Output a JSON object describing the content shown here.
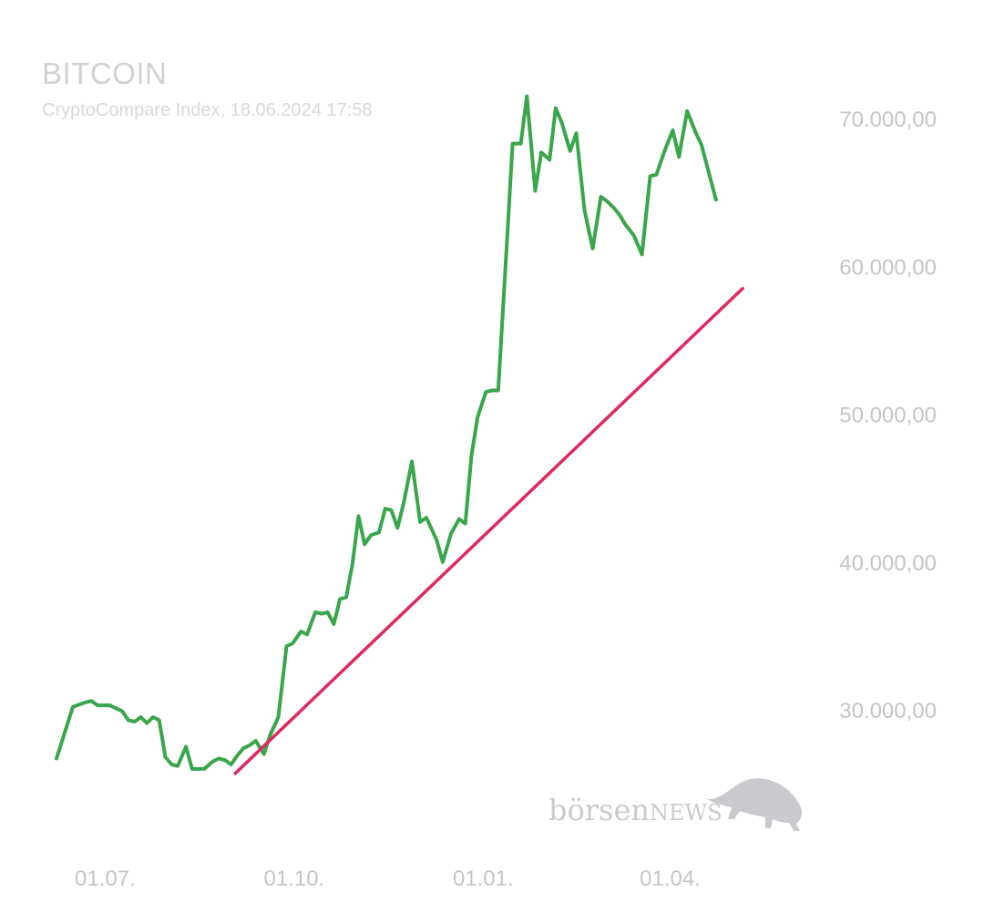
{
  "chart_data": {
    "type": "line",
    "title": "BITCOIN",
    "subtitle": "CryptoCompare Index, 18.06.2024 17:58",
    "xlabel": "",
    "ylabel": "",
    "ylim": [
      24500,
      72500
    ],
    "y_ticks": [
      {
        "value": 30000,
        "label": "30.000,00"
      },
      {
        "value": 40000,
        "label": "40.000,00"
      },
      {
        "value": 50000,
        "label": "50.000,00"
      },
      {
        "value": 60000,
        "label": "60.000,00"
      },
      {
        "value": 70000,
        "label": "70.000,00"
      }
    ],
    "x_ticks": [
      {
        "date": "2023-07-01",
        "label": "01.07."
      },
      {
        "date": "2023-10-01",
        "label": "01.10."
      },
      {
        "date": "2024-01-01",
        "label": "01.01."
      },
      {
        "date": "2024-04-01",
        "label": "01.04."
      }
    ],
    "xlim": [
      "2023-06-19",
      "2024-06-18"
    ],
    "grid": false,
    "legend": "none",
    "series": [
      {
        "color": "#3aa64c",
        "points": [
          [
            "2023-06-19",
            26700
          ],
          [
            "2023-06-27",
            30200
          ],
          [
            "2023-07-03",
            30500
          ],
          [
            "2023-07-06",
            30600
          ],
          [
            "2023-07-09",
            30300
          ],
          [
            "2023-07-12",
            30300
          ],
          [
            "2023-07-15",
            30300
          ],
          [
            "2023-07-18",
            30100
          ],
          [
            "2023-07-21",
            29900
          ],
          [
            "2023-07-24",
            29300
          ],
          [
            "2023-07-27",
            29200
          ],
          [
            "2023-07-30",
            29500
          ],
          [
            "2023-08-02",
            29100
          ],
          [
            "2023-08-05",
            29500
          ],
          [
            "2023-08-08",
            29300
          ],
          [
            "2023-08-11",
            26800
          ],
          [
            "2023-08-14",
            26300
          ],
          [
            "2023-08-17",
            26200
          ],
          [
            "2023-08-21",
            27500
          ],
          [
            "2023-08-24",
            26000
          ],
          [
            "2023-08-27",
            26000
          ],
          [
            "2023-08-30",
            26000
          ],
          [
            "2023-09-03",
            26500
          ],
          [
            "2023-09-06",
            26700
          ],
          [
            "2023-09-09",
            26600
          ],
          [
            "2023-09-12",
            26300
          ],
          [
            "2023-09-15",
            26900
          ],
          [
            "2023-09-18",
            27400
          ],
          [
            "2023-09-21",
            27600
          ],
          [
            "2023-09-24",
            27900
          ],
          [
            "2023-09-28",
            27000
          ],
          [
            "2023-10-01",
            28300
          ],
          [
            "2023-10-05",
            29500
          ],
          [
            "2023-10-09",
            34300
          ],
          [
            "2023-10-12",
            34500
          ],
          [
            "2023-10-16",
            35300
          ],
          [
            "2023-10-19",
            35100
          ],
          [
            "2023-10-23",
            36600
          ],
          [
            "2023-10-26",
            36500
          ],
          [
            "2023-10-29",
            36600
          ],
          [
            "2023-11-01",
            35800
          ],
          [
            "2023-11-04",
            37500
          ],
          [
            "2023-11-07",
            37600
          ],
          [
            "2023-11-10",
            39800
          ],
          [
            "2023-11-13",
            43100
          ],
          [
            "2023-11-16",
            41200
          ],
          [
            "2023-11-19",
            41800
          ],
          [
            "2023-11-23",
            42000
          ],
          [
            "2023-11-26",
            43600
          ],
          [
            "2023-11-29",
            43500
          ],
          [
            "2023-12-02",
            42300
          ],
          [
            "2023-12-05",
            44000
          ],
          [
            "2023-12-09",
            46800
          ],
          [
            "2023-12-13",
            42700
          ],
          [
            "2023-12-16",
            43000
          ],
          [
            "2023-12-21",
            41500
          ],
          [
            "2023-12-24",
            40000
          ],
          [
            "2023-12-28",
            41900
          ],
          [
            "2024-01-01",
            42900
          ],
          [
            "2024-01-04",
            42600
          ],
          [
            "2024-01-07",
            47200
          ],
          [
            "2024-01-10",
            49800
          ],
          [
            "2024-01-14",
            51500
          ],
          [
            "2024-01-17",
            51600
          ],
          [
            "2024-01-20",
            51600
          ],
          [
            "2024-01-24",
            61000
          ],
          [
            "2024-01-27",
            68300
          ],
          [
            "2024-01-31",
            68300
          ],
          [
            "2024-02-03",
            71500
          ],
          [
            "2024-02-07",
            65100
          ],
          [
            "2024-02-10",
            67700
          ],
          [
            "2024-02-14",
            67200
          ],
          [
            "2024-02-17",
            70700
          ],
          [
            "2024-02-20",
            69700
          ],
          [
            "2024-02-24",
            67800
          ],
          [
            "2024-02-27",
            69000
          ],
          [
            "2024-03-02",
            63800
          ],
          [
            "2024-03-06",
            61200
          ],
          [
            "2024-03-10",
            64700
          ],
          [
            "2024-03-13",
            64400
          ],
          [
            "2024-03-16",
            64000
          ],
          [
            "2024-03-19",
            63500
          ],
          [
            "2024-03-22",
            62800
          ],
          [
            "2024-03-26",
            62100
          ],
          [
            "2024-03-30",
            60800
          ],
          [
            "2024-04-03",
            66100
          ],
          [
            "2024-04-06",
            66200
          ],
          [
            "2024-04-10",
            67800
          ],
          [
            "2024-04-14",
            69200
          ],
          [
            "2024-04-17",
            67400
          ],
          [
            "2024-04-21",
            70500
          ],
          [
            "2024-04-25",
            69100
          ],
          [
            "2024-04-28",
            68200
          ],
          [
            "2024-05-05",
            64500
          ]
        ]
      },
      {
        "color": "#dd2a5c",
        "points": [
          [
            "2023-09-14",
            25700
          ],
          [
            "2024-05-18",
            58500
          ]
        ]
      }
    ]
  },
  "watermark": {
    "text_bold": "börsen",
    "text_caps": "NEWS"
  }
}
